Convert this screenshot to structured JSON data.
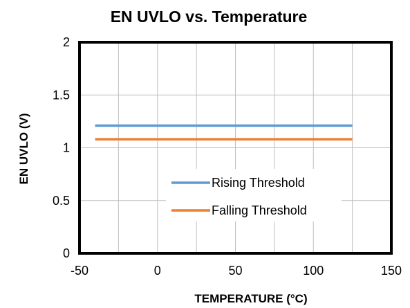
{
  "chart_data": {
    "type": "line",
    "title": "EN UVLO vs. Temperature",
    "xlabel": "TEMPERATURE (°C)",
    "ylabel": "EN UVLO (V)",
    "xlim": [
      -50,
      150
    ],
    "ylim": [
      0,
      2
    ],
    "x_ticks": [
      "-50",
      "0",
      "50",
      "100",
      "150"
    ],
    "y_ticks": [
      "0",
      "0.5",
      "1",
      "1.5",
      "2"
    ],
    "grid": true,
    "legend_position": "bottom-right",
    "series": [
      {
        "name": "Rising Threshold",
        "color": "#5B9BD5",
        "x": [
          -40,
          125
        ],
        "y": [
          1.21,
          1.21
        ]
      },
      {
        "name": "Falling Threshold",
        "color": "#ED7D31",
        "x": [
          -40,
          125
        ],
        "y": [
          1.08,
          1.08
        ]
      }
    ]
  }
}
